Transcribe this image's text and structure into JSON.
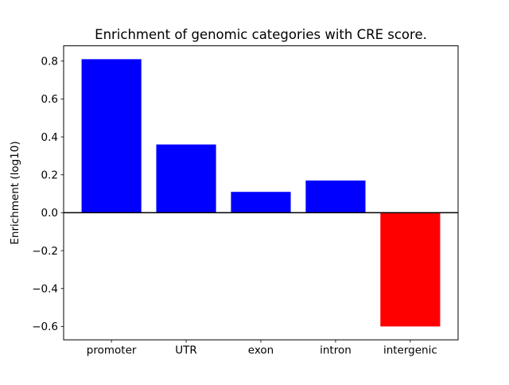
{
  "figure": {
    "background": "#ffffff"
  },
  "chart_data": {
    "type": "bar",
    "title": "Enrichment of genomic categories with CRE score.",
    "xlabel": "",
    "ylabel": "Enrichment (log10)",
    "categories": [
      "promoter",
      "UTR",
      "exon",
      "intron",
      "intergenic"
    ],
    "values": [
      0.81,
      0.36,
      0.11,
      0.17,
      -0.6
    ],
    "bar_colors": [
      "#0000ff",
      "#0000ff",
      "#0000ff",
      "#0000ff",
      "#ff0000"
    ],
    "positive_color": "#0000ff",
    "negative_color": "#ff0000",
    "bar_width": 0.8,
    "ylim": [
      -0.6705,
      0.8805
    ],
    "yticks": [
      -0.6,
      -0.4,
      -0.2,
      0.0,
      0.2,
      0.4,
      0.6,
      0.8
    ],
    "grid": false,
    "legend": null,
    "zero_line": true,
    "axis_color": "#000000"
  }
}
